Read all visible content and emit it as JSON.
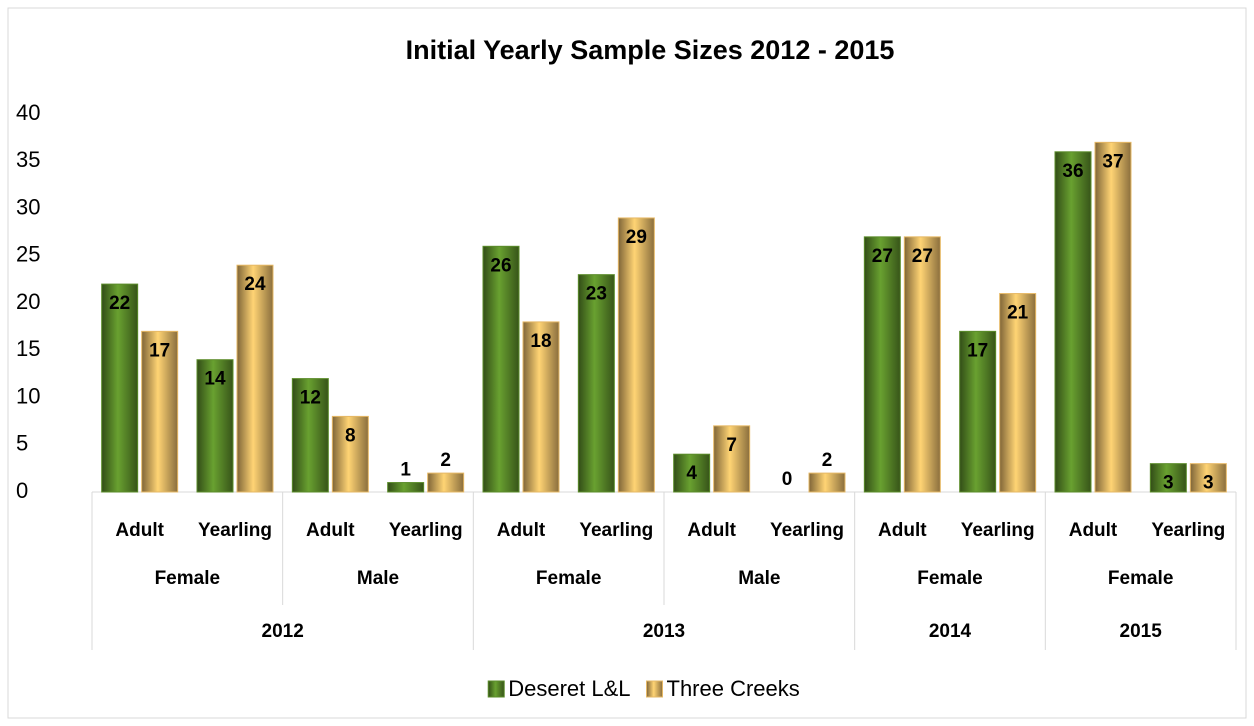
{
  "chart_data": {
    "type": "bar",
    "title": "Initial Yearly Sample Sizes 2012 - 2015",
    "groups": [
      {
        "label": "2012",
        "subgroups": [
          {
            "label": "Female",
            "categories": [
              "Adult",
              "Yearling"
            ]
          },
          {
            "label": "Male",
            "categories": [
              "Adult",
              "Yearling"
            ]
          }
        ]
      },
      {
        "label": "2013",
        "subgroups": [
          {
            "label": "Female",
            "categories": [
              "Adult",
              "Yearling"
            ]
          },
          {
            "label": "Male",
            "categories": [
              "Adult",
              "Yearling"
            ]
          }
        ]
      },
      {
        "label": "2014",
        "subgroups": [
          {
            "label": "Female",
            "categories": [
              "Adult",
              "Yearling"
            ]
          }
        ]
      },
      {
        "label": "2015",
        "subgroups": [
          {
            "label": "Female",
            "categories": [
              "Adult",
              "Yearling"
            ]
          }
        ]
      }
    ],
    "series": [
      {
        "name": "Deseret L&L",
        "color": "#5b8c2a",
        "values": [
          22,
          14,
          12,
          1,
          26,
          23,
          4,
          0,
          27,
          17,
          36,
          3
        ]
      },
      {
        "name": "Three Creeks",
        "color": "#e6b865",
        "values": [
          17,
          24,
          8,
          2,
          18,
          29,
          7,
          2,
          27,
          21,
          37,
          3
        ]
      }
    ],
    "ylim": [
      0,
      40
    ],
    "yticks": [
      0,
      5,
      10,
      15,
      20,
      25,
      30,
      35,
      40
    ],
    "legend": "bottom"
  }
}
